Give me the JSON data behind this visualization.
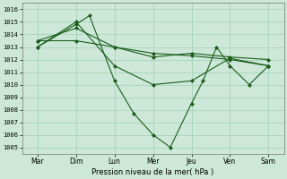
{
  "xlabel": "Pression niveau de la mer( hPa )",
  "x_labels": [
    "Mar",
    "Dim",
    "Lun",
    "Mer",
    "Jeu",
    "Ven",
    "Sam"
  ],
  "x_ticks": [
    0,
    1,
    2,
    3,
    4,
    5,
    6
  ],
  "ylim": [
    1004.5,
    1016.5
  ],
  "yticks": [
    1005,
    1006,
    1007,
    1008,
    1009,
    1010,
    1011,
    1012,
    1013,
    1014,
    1015,
    1016
  ],
  "line_color": "#1a5c1a",
  "bg_color": "#cde8d8",
  "grid_color": "#9ecfb5",
  "line1_x": [
    0,
    1,
    2,
    3,
    4,
    5,
    6
  ],
  "line1_y": [
    1013.5,
    1013.5,
    1013.0,
    1012.5,
    1012.3,
    1012.0,
    1011.5
  ],
  "line2_x": [
    0,
    1,
    2,
    3,
    4,
    5,
    6
  ],
  "line2_y": [
    1013.5,
    1014.5,
    1013.0,
    1012.2,
    1012.5,
    1012.2,
    1012.0
  ],
  "line3_x": [
    0,
    1,
    2,
    3,
    4,
    5,
    6
  ],
  "line3_y": [
    1013.0,
    1015.0,
    1011.5,
    1010.0,
    1010.3,
    1012.1,
    1011.5
  ],
  "line4_x": [
    0,
    1.0,
    1.35,
    2.0,
    2.5,
    3.0,
    3.45,
    4.0,
    4.3,
    4.65,
    5.0,
    5.5,
    6.0
  ],
  "line4_y": [
    1013.0,
    1014.8,
    1015.5,
    1010.3,
    1007.7,
    1006.0,
    1005.0,
    1008.5,
    1010.3,
    1013.0,
    1011.5,
    1010.0,
    1011.5
  ]
}
